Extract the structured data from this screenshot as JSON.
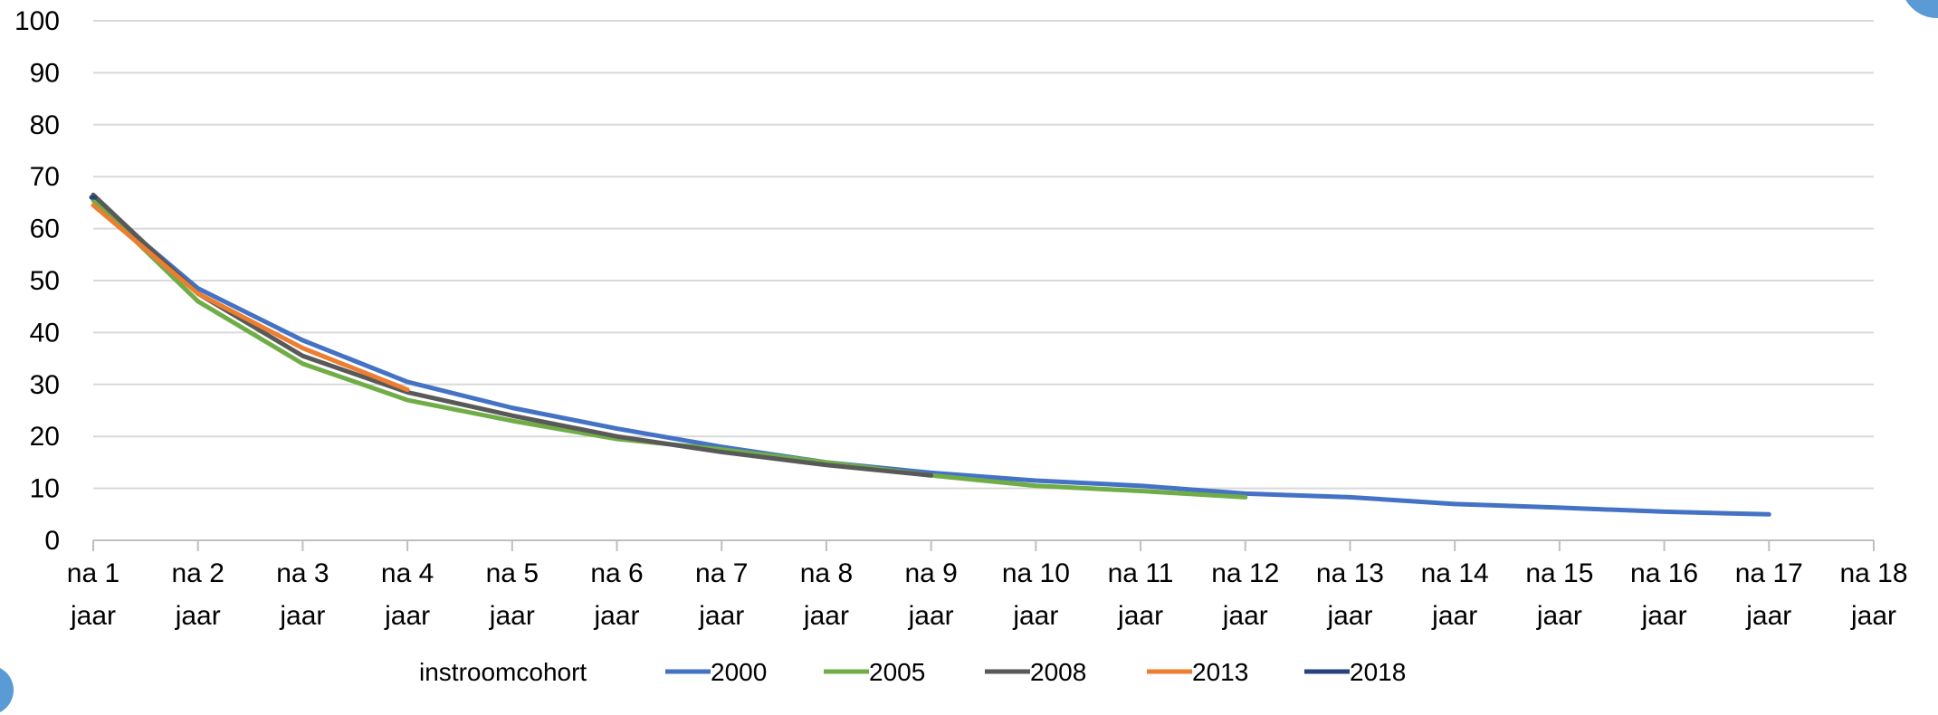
{
  "chart_data": {
    "type": "line",
    "title": "",
    "xlabel": "",
    "ylabel": "",
    "categories": [
      [
        "na 1",
        "jaar"
      ],
      [
        "na 2",
        "jaar"
      ],
      [
        "na 3",
        "jaar"
      ],
      [
        "na 4",
        "jaar"
      ],
      [
        "na 5",
        "jaar"
      ],
      [
        "na 6",
        "jaar"
      ],
      [
        "na 7",
        "jaar"
      ],
      [
        "na 8",
        "jaar"
      ],
      [
        "na 9",
        "jaar"
      ],
      [
        "na 10",
        "jaar"
      ],
      [
        "na 11",
        "jaar"
      ],
      [
        "na 12",
        "jaar"
      ],
      [
        "na 13",
        "jaar"
      ],
      [
        "na 14",
        "jaar"
      ],
      [
        "na 15",
        "jaar"
      ],
      [
        "na 16",
        "jaar"
      ],
      [
        "na 17",
        "jaar"
      ],
      [
        "na 18",
        "jaar"
      ]
    ],
    "y_ticks": [
      0,
      10,
      20,
      30,
      40,
      50,
      60,
      70,
      80,
      90,
      100
    ],
    "ylim": [
      0,
      100
    ],
    "grid": true,
    "legend": {
      "title": "instroomcohort",
      "placement": "bottom"
    },
    "series": [
      {
        "name": "2000",
        "color": "#4472C4",
        "values": [
          65.5,
          48.5,
          38.5,
          30.5,
          25.5,
          21.5,
          18,
          15,
          13,
          11.5,
          10.5,
          9,
          8.3,
          7,
          6.3,
          5.5,
          5,
          null
        ]
      },
      {
        "name": "2005",
        "color": "#70AD47",
        "values": [
          65.5,
          46,
          34,
          27,
          23,
          19.5,
          17.5,
          15,
          12.5,
          10.5,
          9.5,
          8.3,
          null,
          null,
          null,
          null,
          null,
          null
        ]
      },
      {
        "name": "2008",
        "color": "#595959",
        "values": [
          66.5,
          47.5,
          35.5,
          28.5,
          24,
          20,
          17,
          14.5,
          12.5,
          null,
          null,
          null,
          null,
          null,
          null,
          null,
          null,
          null
        ]
      },
      {
        "name": "2013",
        "color": "#ED7D31",
        "values": [
          64.5,
          47.5,
          37,
          29,
          null,
          null,
          null,
          null,
          null,
          null,
          null,
          null,
          null,
          null,
          null,
          null,
          null,
          null
        ]
      },
      {
        "name": "2018",
        "color": "#264478",
        "values": [
          66,
          null,
          null,
          null,
          null,
          null,
          null,
          null,
          null,
          null,
          null,
          null,
          null,
          null,
          null,
          null,
          null,
          null
        ]
      }
    ]
  },
  "decor": {
    "accent_color": "#5B9BD5"
  }
}
